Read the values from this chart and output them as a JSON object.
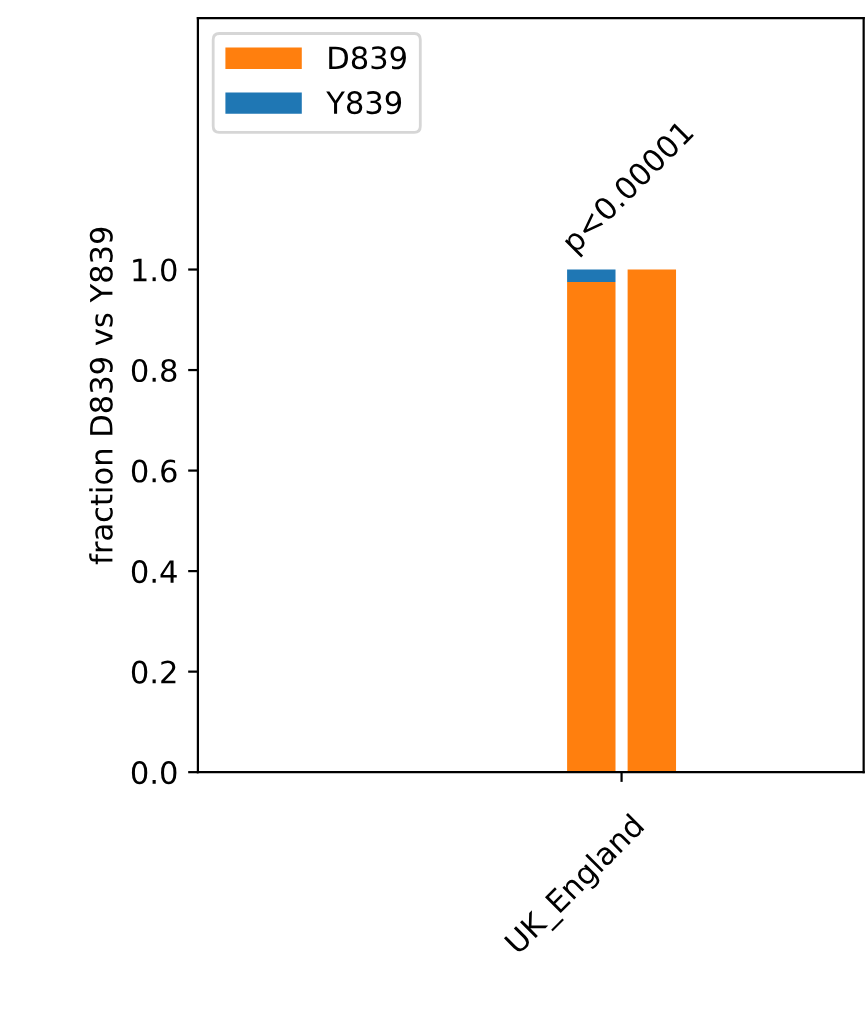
{
  "chart_data": {
    "type": "bar",
    "ylabel": "fraction D839 vs Y839",
    "categories": [
      null,
      null,
      null,
      null,
      null,
      null,
      null,
      null,
      null,
      null,
      null
    ],
    "ylim": [
      0,
      1.5
    ],
    "yticks": [
      {
        "value": 0,
        "label": "0.0"
      },
      {
        "value": 0.2,
        "label": "0.2"
      },
      {
        "value": 0.4,
        "label": "0.4"
      },
      {
        "value": 0.6,
        "label": "0.6"
      },
      {
        "value": 0.8,
        "label": "0.8"
      },
      {
        "value": 1.0,
        "label": "1.0"
      }
    ],
    "stacked": true,
    "legend": "top left",
    "grid": false,
    "series": [
      {
        "name": "D839",
        "color": "#ff7f0e",
        "values": [
          null,
          null,
          null,
          null,
          null,
          null,
          0.975,
          1.0,
          null,
          null,
          null
        ]
      },
      {
        "name": "Y839",
        "color": "#1f77b4",
        "values": [
          null,
          null,
          null,
          null,
          null,
          null,
          0.025,
          0.0,
          null,
          null,
          null
        ]
      }
    ],
    "annotations": [
      "p<0.00001",
      "UK_England"
    ]
  }
}
